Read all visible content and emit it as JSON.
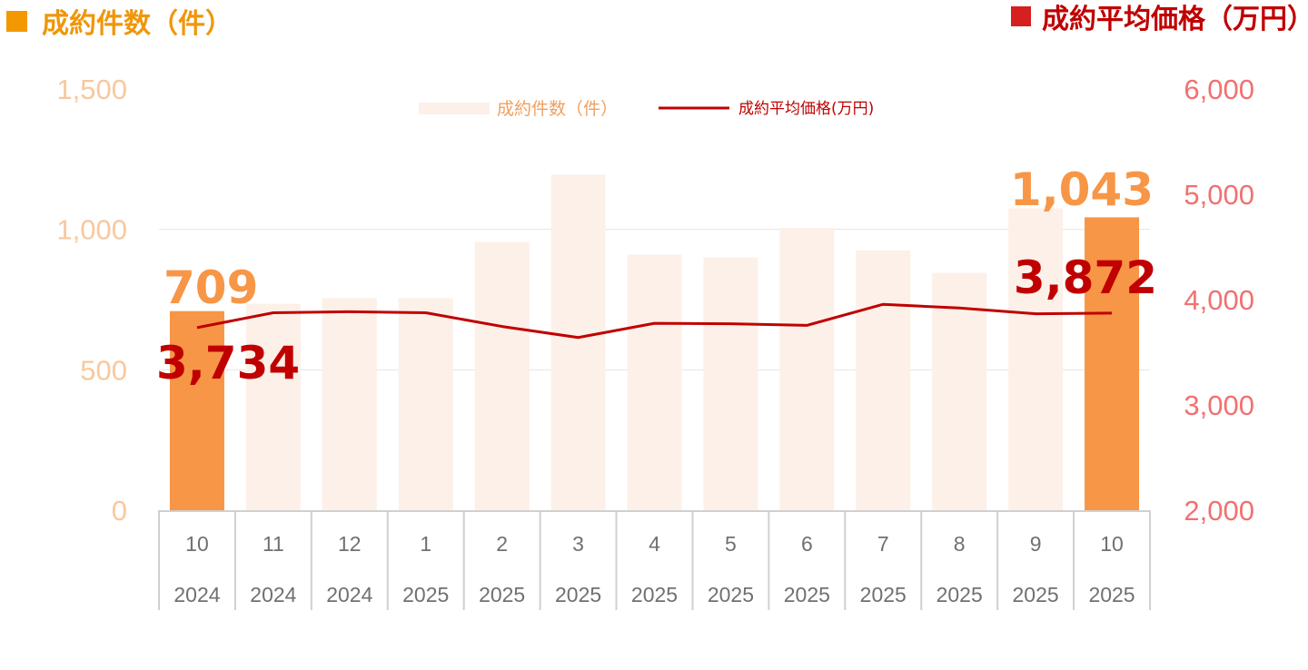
{
  "header": {
    "left_title": "成約件数（件）",
    "right_title": "成約平均価格（万円）"
  },
  "colors": {
    "count_accent": "#F0960A",
    "price_accent": "#C00000",
    "bar_light": "#FCF0E8",
    "bar_highlight": "#F79646",
    "left_axis_text": "#F8C89E",
    "right_axis_text": "#F27070",
    "square_left": "#F39800",
    "square_right": "#D61F1F"
  },
  "chart_data": {
    "type": "bar",
    "categories": [
      "10",
      "11",
      "12",
      "1",
      "2",
      "3",
      "4",
      "5",
      "6",
      "7",
      "8",
      "9",
      "10"
    ],
    "years": [
      "2024",
      "2024",
      "2024",
      "2025",
      "2025",
      "2025",
      "2025",
      "2025",
      "2025",
      "2025",
      "2025",
      "2025",
      "2025"
    ],
    "left_ticks": [
      "1,500",
      "1,000",
      "500",
      "0"
    ],
    "right_ticks": [
      "6,000",
      "5,000",
      "4,000",
      "3,000",
      "2,000"
    ],
    "series": [
      {
        "name": "成約件数（件）",
        "type": "bar",
        "axis": "left",
        "values": [
          709,
          735,
          755,
          755,
          955,
          1195,
          910,
          900,
          1005,
          925,
          845,
          1075,
          1043
        ],
        "highlight_indices": [
          0,
          12
        ]
      },
      {
        "name": "成約平均価格(万円)",
        "type": "line",
        "axis": "right",
        "values": [
          3734,
          3875,
          3885,
          3875,
          3745,
          3640,
          3775,
          3770,
          3755,
          3955,
          3920,
          3865,
          3872
        ]
      }
    ],
    "ylim_left": [
      0,
      1500
    ],
    "ylim_right": [
      2000,
      6000
    ],
    "gridlines": true,
    "legend_position": "top",
    "annotations": [
      {
        "text": "709",
        "series": "成約件数（件）",
        "index": 0
      },
      {
        "text": "1,043",
        "series": "成約件数（件）",
        "index": 12
      },
      {
        "text": "3,734",
        "series": "成約平均価格(万円)",
        "index": 0
      },
      {
        "text": "3,872",
        "series": "成約平均価格(万円)",
        "index": 12
      }
    ]
  }
}
